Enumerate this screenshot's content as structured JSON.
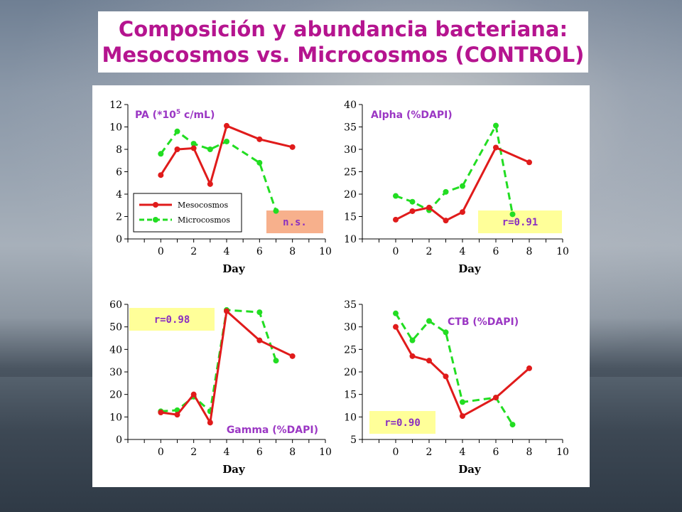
{
  "title": {
    "line1": "Composición y abundancia bacteriana:",
    "line2": "Mesocosmos vs. Microcosmos (CONTROL)"
  },
  "colors": {
    "title": "#b5148f",
    "label_text": "#9b37c4",
    "mesocosmos": "#e01b1b",
    "microcosmos": "#22dd22",
    "box_pink": "#f7b08c",
    "box_yellow": "#ffff99"
  },
  "legend": {
    "mesocosmos": "Mesocosmos",
    "microcosmos": "Microcosmos"
  },
  "chart_data": [
    {
      "type": "line",
      "title": "PA (*10",
      "title_sup": "5",
      "title_end": " c/mL)",
      "xlabel": "Day",
      "xlim": [
        -2,
        10
      ],
      "xticks": [
        0,
        2,
        4,
        6,
        8,
        10
      ],
      "ylim": [
        0,
        12
      ],
      "yticks": [
        0,
        2,
        4,
        6,
        8,
        10,
        12
      ],
      "stat": "n.s.",
      "stat_color": "pink",
      "legend": true,
      "series": [
        {
          "name": "Mesocosmos",
          "x": [
            0,
            1,
            2,
            3,
            4,
            6,
            8
          ],
          "values": [
            5.7,
            8.0,
            8.1,
            4.9,
            10.1,
            8.9,
            8.2
          ]
        },
        {
          "name": "Microcosmos",
          "x": [
            0,
            1,
            2,
            3,
            4,
            6,
            7
          ],
          "values": [
            7.6,
            9.6,
            8.5,
            8.0,
            8.7,
            6.8,
            2.5
          ]
        }
      ]
    },
    {
      "type": "line",
      "title": "Alpha (%DAPI)",
      "xlabel": "Day",
      "xlim": [
        -2,
        10
      ],
      "xticks": [
        0,
        2,
        4,
        6,
        8,
        10
      ],
      "ylim": [
        10,
        40
      ],
      "yticks": [
        10,
        15,
        20,
        25,
        30,
        35,
        40
      ],
      "stat": "r=0.91",
      "stat_color": "yellow",
      "series": [
        {
          "name": "Mesocosmos",
          "x": [
            0,
            1,
            2,
            3,
            4,
            6,
            8
          ],
          "values": [
            14.3,
            16.2,
            17.0,
            14.1,
            16.0,
            30.4,
            27.1
          ]
        },
        {
          "name": "Microcosmos",
          "x": [
            0,
            1,
            2,
            3,
            4,
            6,
            7
          ],
          "values": [
            19.6,
            18.3,
            16.4,
            20.5,
            21.8,
            35.3,
            15.5
          ]
        }
      ]
    },
    {
      "type": "line",
      "title": "Gamma (%DAPI)",
      "xlabel": "Day",
      "xlim": [
        -2,
        10
      ],
      "xticks": [
        0,
        2,
        4,
        6,
        8,
        10
      ],
      "ylim": [
        0,
        60
      ],
      "yticks": [
        0,
        10,
        20,
        30,
        40,
        50,
        60
      ],
      "stat": "r=0.98",
      "stat_color": "yellow",
      "series": [
        {
          "name": "Mesocosmos",
          "x": [
            0,
            1,
            2,
            3,
            4,
            6,
            8
          ],
          "values": [
            12.0,
            11.0,
            20.0,
            7.5,
            57.0,
            44.0,
            37.0
          ]
        },
        {
          "name": "Microcosmos",
          "x": [
            0,
            1,
            2,
            3,
            4,
            6,
            7
          ],
          "values": [
            12.5,
            13.0,
            19.0,
            12.5,
            57.5,
            56.5,
            35.0
          ]
        }
      ]
    },
    {
      "type": "line",
      "title": "CTB (%DAPI)",
      "xlabel": "Day",
      "xlim": [
        -2,
        10
      ],
      "xticks": [
        0,
        2,
        4,
        6,
        8,
        10
      ],
      "ylim": [
        5,
        35
      ],
      "yticks": [
        5,
        10,
        15,
        20,
        25,
        30,
        35
      ],
      "stat": "r=0.90",
      "stat_color": "yellow",
      "series": [
        {
          "name": "Mesocosmos",
          "x": [
            0,
            1,
            2,
            3,
            4,
            6,
            8
          ],
          "values": [
            30.0,
            23.5,
            22.5,
            19.0,
            10.2,
            14.3,
            20.8
          ]
        },
        {
          "name": "Microcosmos",
          "x": [
            0,
            1,
            2,
            3,
            4,
            6,
            7
          ],
          "values": [
            33.0,
            27.0,
            31.3,
            28.8,
            13.3,
            14.3,
            8.3
          ]
        }
      ]
    }
  ]
}
